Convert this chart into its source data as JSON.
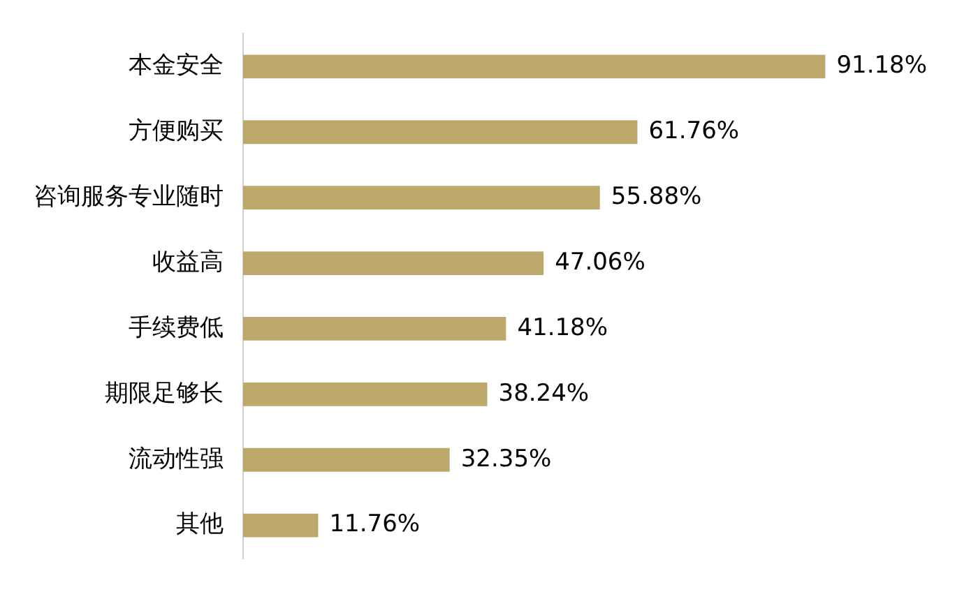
{
  "chart_data": {
    "type": "bar",
    "orientation": "horizontal",
    "categories": [
      "本金安全",
      "方便购买",
      "咨询服务专业随时",
      "收益高",
      "手续费低",
      "期限足够长",
      "流动性强",
      "其他"
    ],
    "values": [
      91.18,
      61.76,
      55.88,
      47.06,
      41.18,
      38.24,
      32.35,
      11.76
    ],
    "value_labels": [
      "91.18%",
      "61.76%",
      "55.88%",
      "47.06%",
      "41.18%",
      "38.24%",
      "32.35%",
      "11.76%"
    ],
    "color": "#bba86a",
    "tick_labels": "y"
  }
}
